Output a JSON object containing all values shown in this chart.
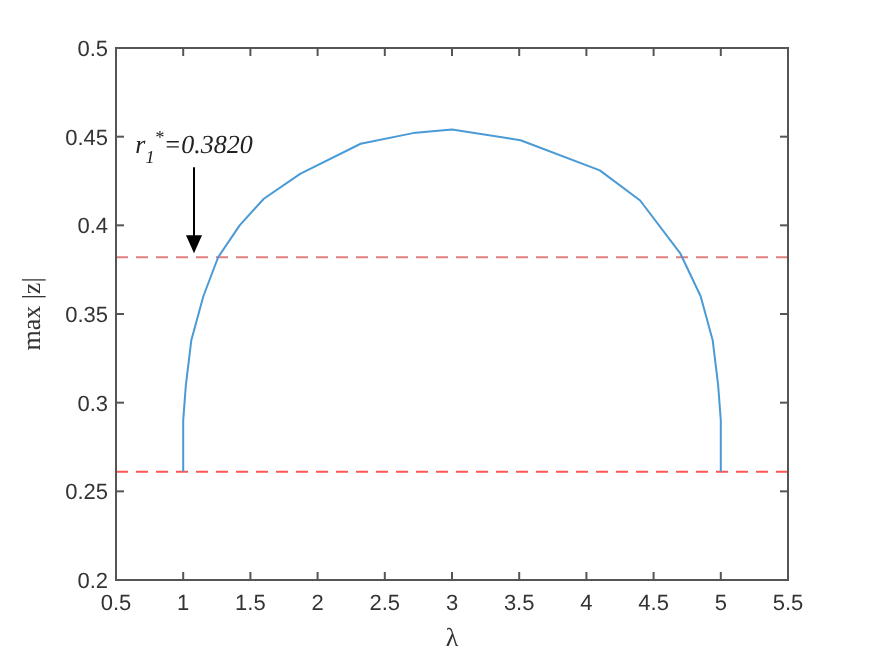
{
  "chart_data": {
    "type": "line",
    "xlabel": "λ",
    "ylabel": "max |z|",
    "xlim": [
      0.5,
      5.5
    ],
    "xticks": [
      0.5,
      1,
      1.5,
      2,
      2.5,
      3,
      3.5,
      4,
      4.5,
      5,
      5.5
    ],
    "ylim": [
      0.2,
      0.5
    ],
    "yticks": [
      0.2,
      0.25,
      0.3,
      0.35,
      0.4,
      0.45,
      0.5
    ],
    "grid": false,
    "line_style": "solid",
    "series": [
      {
        "color": "#4a9ad6",
        "x": [
          1.0,
          1.0,
          1.02,
          1.06,
          1.15,
          1.26,
          1.42,
          1.6,
          1.87,
          2.32,
          2.71,
          3.0,
          3.51,
          4.1,
          4.4,
          4.7,
          4.85,
          4.94,
          4.98,
          5.0,
          5.0
        ],
        "values": [
          0.261,
          0.29,
          0.31,
          0.335,
          0.36,
          0.382,
          0.4,
          0.415,
          0.429,
          0.446,
          0.452,
          0.454,
          0.448,
          0.431,
          0.414,
          0.384,
          0.36,
          0.335,
          0.31,
          0.29,
          0.261
        ]
      }
    ],
    "ref_lines": [
      {
        "axis": "y",
        "value": 0.382,
        "color": "#e08080",
        "line_style": "dashed"
      },
      {
        "axis": "y",
        "value": 0.261,
        "color": "#ff5555",
        "line_style": "dashed"
      }
    ],
    "annotations": [
      "r$_{1}$$^{*}$=0.3820"
    ]
  }
}
